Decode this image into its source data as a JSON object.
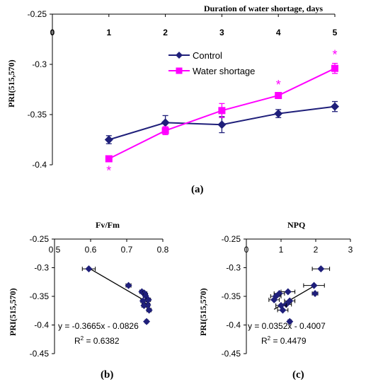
{
  "colors": {
    "control": "#1f1f7a",
    "water": "#ff00ff",
    "scatter": "#1f1f7a",
    "axis": "#000000"
  },
  "chart_data": [
    {
      "id": "a",
      "type": "line",
      "panel_label": "(a)",
      "title": "",
      "xlabel": "Duration of water shortage, days",
      "ylabel": "PRI(515,570)",
      "xlim": [
        0,
        5
      ],
      "ylim": [
        -0.4,
        -0.25
      ],
      "xticks": [
        0,
        1,
        2,
        3,
        4,
        5
      ],
      "yticks": [
        -0.25,
        -0.3,
        -0.35,
        -0.4
      ],
      "x": [
        1,
        2,
        3,
        4,
        5
      ],
      "series": [
        {
          "name": "Control",
          "color": "#1f1f7a",
          "marker": "diamond",
          "values": [
            -0.375,
            -0.358,
            -0.36,
            -0.349,
            -0.342
          ],
          "errors": [
            0.004,
            0.007,
            0.008,
            0.004,
            0.005
          ]
        },
        {
          "name": "Water shortage",
          "color": "#ff00ff",
          "marker": "square",
          "values": [
            -0.394,
            -0.366,
            -0.346,
            -0.331,
            -0.304
          ],
          "errors": [
            0.002,
            0.004,
            0.007,
            0.002,
            0.005
          ]
        }
      ],
      "annotations": [
        {
          "x": 1,
          "text": "*"
        },
        {
          "x": 4,
          "text": "*"
        },
        {
          "x": 5,
          "text": "*"
        }
      ],
      "legend": "top-left"
    },
    {
      "id": "b",
      "type": "scatter",
      "panel_label": "(b)",
      "title": "Fv/Fm",
      "ylabel": "PRI(515,570)",
      "xlim": [
        0.5,
        0.8
      ],
      "ylim": [
        -0.45,
        -0.25
      ],
      "xticks": [
        "0.5",
        "0.6",
        "0.7",
        "0.8"
      ],
      "yticks": [
        "-0.25",
        "-0.3",
        "-0.35",
        "-0.4",
        "-0.45"
      ],
      "points": [
        {
          "x": 0.595,
          "y": -0.302,
          "xerr": 0.018
        },
        {
          "x": 0.705,
          "y": -0.331,
          "xerr": 0.007
        },
        {
          "x": 0.742,
          "y": -0.342,
          "xerr": 0.006
        },
        {
          "x": 0.75,
          "y": -0.345,
          "xerr": 0.006
        },
        {
          "x": 0.752,
          "y": -0.349,
          "xerr": 0.006
        },
        {
          "x": 0.76,
          "y": -0.356,
          "xerr": 0.006
        },
        {
          "x": 0.745,
          "y": -0.358,
          "xerr": 0.006
        },
        {
          "x": 0.758,
          "y": -0.365,
          "xerr": 0.006
        },
        {
          "x": 0.748,
          "y": -0.366,
          "xerr": 0.006
        },
        {
          "x": 0.762,
          "y": -0.374,
          "xerr": 0.006
        },
        {
          "x": 0.755,
          "y": -0.394,
          "xerr": 0.004
        }
      ],
      "trendline": {
        "slope": -0.3665,
        "intercept": -0.0826,
        "x_from": 0.595,
        "x_to": 0.765
      },
      "equation": "y = -0.3665x - 0.0826",
      "r2_text": "R",
      "r2_value": " = 0.6382"
    },
    {
      "id": "c",
      "type": "scatter",
      "panel_label": "(c)",
      "title": "NPQ",
      "ylabel": "PRI(515,570)",
      "xlim": [
        0,
        3
      ],
      "ylim": [
        -0.45,
        -0.25
      ],
      "xticks": [
        "0",
        "1",
        "2",
        "3"
      ],
      "yticks": [
        "-0.25",
        "-0.3",
        "-0.35",
        "-0.4",
        "-0.45"
      ],
      "points": [
        {
          "x": 2.15,
          "y": -0.302,
          "xerr": 0.25
        },
        {
          "x": 1.95,
          "y": -0.331,
          "xerr": 0.3
        },
        {
          "x": 1.98,
          "y": -0.345,
          "xerr": 0.08
        },
        {
          "x": 1.2,
          "y": -0.342,
          "xerr": 0.2
        },
        {
          "x": 0.95,
          "y": -0.345,
          "xerr": 0.15
        },
        {
          "x": 0.85,
          "y": -0.35,
          "xerr": 0.15
        },
        {
          "x": 0.8,
          "y": -0.356,
          "xerr": 0.15
        },
        {
          "x": 1.25,
          "y": -0.358,
          "xerr": 0.15
        },
        {
          "x": 1.15,
          "y": -0.364,
          "xerr": 0.15
        },
        {
          "x": 1.0,
          "y": -0.366,
          "xerr": 0.15
        },
        {
          "x": 1.05,
          "y": -0.374,
          "xerr": 0.15
        },
        {
          "x": 1.25,
          "y": -0.394,
          "xerr": 0.05
        }
      ],
      "trendline": {
        "slope": 0.0352,
        "intercept": -0.4007,
        "x_from": 0.8,
        "x_to": 2.0
      },
      "equation": "y = 0.0352x - 0.4007",
      "r2_text": "R",
      "r2_value": " = 0.4479"
    }
  ]
}
